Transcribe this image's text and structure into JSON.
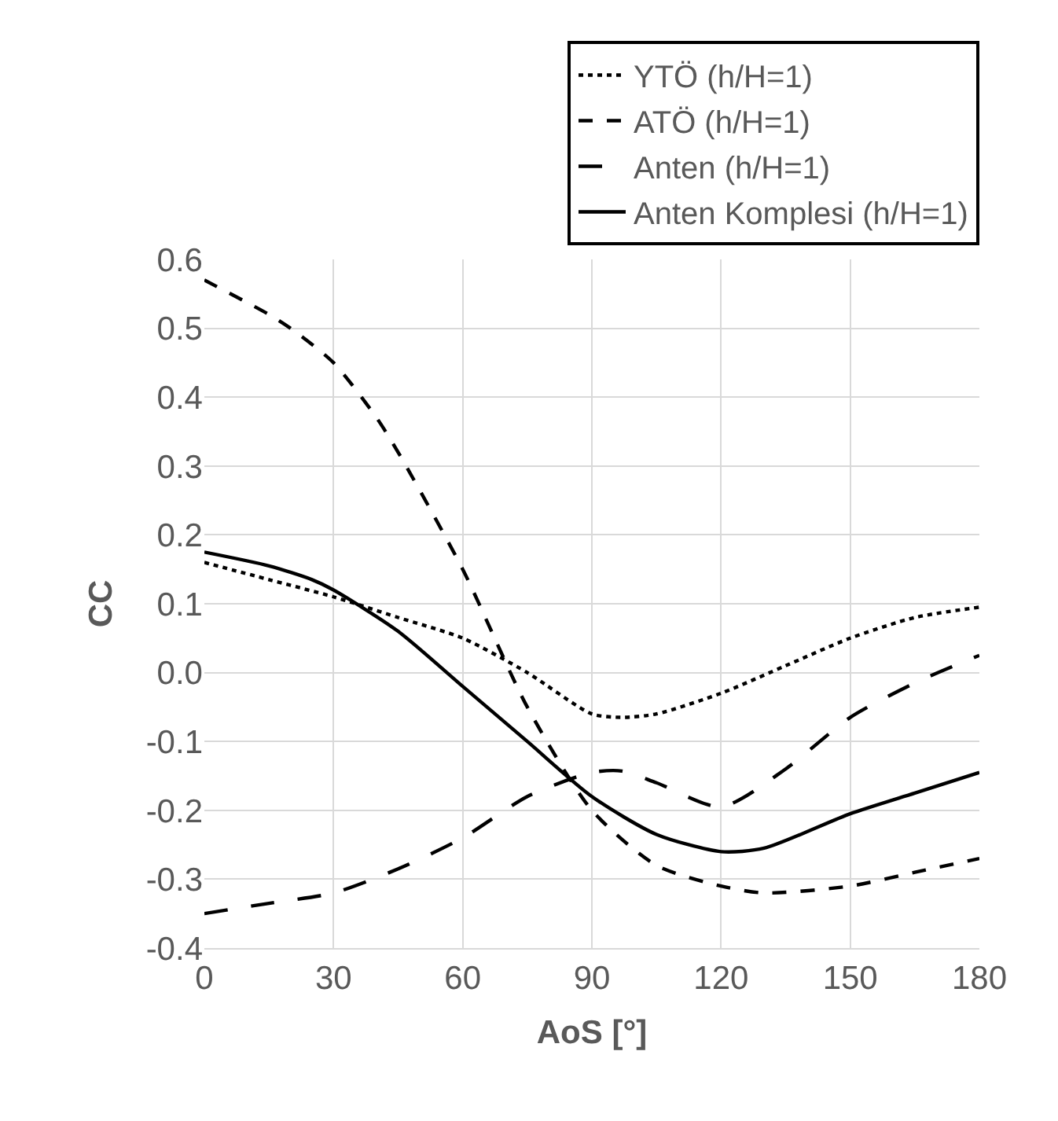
{
  "chart_data": {
    "type": "line",
    "xlabel": "AoS [°]",
    "ylabel": "CC",
    "xlim": [
      0,
      180
    ],
    "xticks": [
      0,
      30,
      60,
      90,
      120,
      150,
      180
    ],
    "ylim": [
      -0.4,
      0.6
    ],
    "yticks": [
      0.6,
      0.5,
      0.4,
      0.3,
      0.2,
      0.1,
      {
        "value": 0,
        "label": "0.0"
      },
      -0.1,
      -0.2,
      -0.3,
      -0.4
    ],
    "grid": true,
    "legend": "top right",
    "marker": "none",
    "series": [
      {
        "name": "YTÖ (h/H=1)",
        "color": "#000000",
        "line_style": "dotted",
        "x": [
          0,
          15,
          30,
          45,
          60,
          75,
          90,
          97,
          105,
          120,
          135,
          150,
          165,
          180
        ],
        "values": [
          0.16,
          0.135,
          0.11,
          0.08,
          0.05,
          0.0,
          -0.06,
          -0.065,
          -0.06,
          -0.03,
          0.01,
          0.05,
          0.08,
          0.095
        ]
      },
      {
        "name": "ATÖ (h/H=1)",
        "color": "#000000",
        "line_style": "dashed",
        "x": [
          0,
          15,
          20,
          30,
          40,
          45,
          60,
          75,
          90,
          105,
          120,
          130,
          150,
          165,
          180
        ],
        "values": [
          0.57,
          0.52,
          0.5,
          0.45,
          0.37,
          0.32,
          0.15,
          -0.05,
          -0.2,
          -0.28,
          -0.31,
          -0.32,
          -0.31,
          -0.29,
          -0.27
        ]
      },
      {
        "name": "Anten (h/H=1)",
        "color": "#000000",
        "line_style": "long dashed",
        "x": [
          0,
          15,
          30,
          45,
          60,
          75,
          90,
          97,
          105,
          120,
          135,
          150,
          165,
          180
        ],
        "values": [
          -0.35,
          -0.335,
          -0.32,
          -0.285,
          -0.24,
          -0.18,
          -0.145,
          -0.143,
          -0.16,
          -0.195,
          -0.14,
          -0.065,
          -0.015,
          0.025
        ]
      },
      {
        "name": "Anten Komplesi (h/H=1)",
        "color": "#000000",
        "line_style": "solid",
        "x": [
          0,
          15,
          25,
          30,
          45,
          60,
          75,
          90,
          105,
          120,
          130,
          150,
          165,
          180
        ],
        "values": [
          0.175,
          0.155,
          0.135,
          0.12,
          0.06,
          -0.02,
          -0.1,
          -0.18,
          -0.235,
          -0.26,
          -0.255,
          -0.205,
          -0.175,
          -0.145
        ]
      }
    ]
  }
}
